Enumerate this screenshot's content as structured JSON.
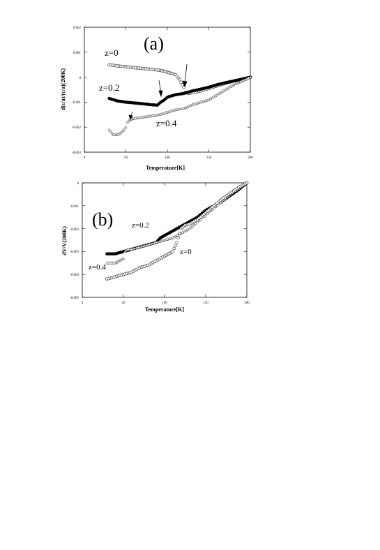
{
  "chart_data": [
    {
      "type": "scatter",
      "panel_label": "(a)",
      "xlabel": "Temperature[K]",
      "ylabel": "d(c/a)/(c/a)(200K)",
      "xlim": [
        0,
        200
      ],
      "ylim": [
        -0.003,
        0.002
      ],
      "xticks": [
        "0",
        "50",
        "100",
        "150",
        "200"
      ],
      "yticks": [
        "0.002",
        "0.001",
        "0",
        "-0.001",
        "-0.002",
        "-0.003"
      ],
      "grid": false,
      "series": [
        {
          "name": "z=0",
          "marker": "open-circle",
          "x": [
            30,
            40,
            50,
            60,
            70,
            80,
            90,
            95,
            100,
            105,
            110,
            115,
            118,
            120,
            122,
            125,
            130,
            140,
            150,
            160,
            170,
            180,
            190,
            200
          ],
          "y": [
            0.0005,
            0.00045,
            0.00042,
            0.00038,
            0.00035,
            0.00032,
            0.00028,
            0.00025,
            0.0002,
            0.00015,
            0.0001,
            -0.0001,
            -0.0003,
            -0.0004,
            -0.0006,
            -0.00065,
            -0.00062,
            -0.00055,
            -0.00045,
            -0.00035,
            -0.00025,
            -0.00015,
            -8e-05,
            0.0
          ]
        },
        {
          "name": "z=0.2",
          "marker": "filled-circle",
          "x": [
            30,
            40,
            50,
            60,
            70,
            80,
            88,
            92,
            96,
            100,
            110,
            120,
            130,
            140,
            150,
            160,
            170,
            180,
            190,
            200
          ],
          "y": [
            -0.00085,
            -0.00095,
            -0.001,
            -0.00103,
            -0.00106,
            -0.0011,
            -0.00112,
            -0.001,
            -0.00092,
            -0.0008,
            -0.0007,
            -0.00065,
            -0.00055,
            -0.00048,
            -0.0004,
            -0.0003,
            -0.00022,
            -0.00015,
            -8e-05,
            0.0
          ]
        },
        {
          "name": "z=0.4",
          "marker": "open-triangle",
          "x": [
            30,
            35,
            40,
            45,
            50,
            52,
            55,
            60,
            70,
            80,
            90,
            100,
            110,
            120,
            130,
            140,
            150,
            160,
            170,
            180,
            190,
            200
          ],
          "y": [
            -0.0021,
            -0.0023,
            -0.0023,
            -0.0022,
            -0.002,
            -0.0018,
            -0.0017,
            -0.00165,
            -0.0016,
            -0.00155,
            -0.0015,
            -0.0014,
            -0.0013,
            -0.00125,
            -0.0011,
            -0.001,
            -0.0009,
            -0.0007,
            -0.0005,
            -0.0003,
            -0.00015,
            0.0
          ]
        }
      ],
      "arrows_at_x": [
        58,
        92,
        122
      ]
    },
    {
      "type": "scatter",
      "panel_label": "(b)",
      "xlabel": "Temperature[K]",
      "ylabel": "dV/V(200K)",
      "xlim": [
        0,
        200
      ],
      "ylim": [
        -0.005,
        0
      ],
      "xticks": [
        "0",
        "50",
        "100",
        "150",
        "200"
      ],
      "yticks": [
        "0",
        "-0.001",
        "-0.002",
        "-0.003",
        "-0.004",
        "-0.005"
      ],
      "grid": false,
      "series": [
        {
          "name": "z=0.2",
          "marker": "filled-circle",
          "x": [
            30,
            40,
            50,
            60,
            70,
            80,
            90,
            95,
            100,
            110,
            120,
            130,
            140,
            150,
            160,
            170,
            180,
            190,
            200
          ],
          "y": [
            -0.0031,
            -0.0031,
            -0.003,
            -0.0029,
            -0.0028,
            -0.0027,
            -0.0026,
            -0.0024,
            -0.0023,
            -0.0021,
            -0.0019,
            -0.0017,
            -0.0015,
            -0.0012,
            -0.001,
            -0.0008,
            -0.00055,
            -0.0003,
            0.0
          ]
        },
        {
          "name": "z=0.4",
          "marker": "open-triangle",
          "x": [
            30,
            40,
            45,
            50,
            52,
            55,
            60,
            70,
            80,
            90,
            100,
            110,
            120,
            130,
            140,
            150,
            160,
            170,
            180,
            190,
            200
          ],
          "y": [
            -0.0035,
            -0.0035,
            -0.0034,
            -0.0033,
            -0.003,
            -0.0029,
            -0.0029,
            -0.0028,
            -0.0027,
            -0.0026,
            -0.0025,
            -0.0024,
            -0.0022,
            -0.002,
            -0.0017,
            -0.0014,
            -0.0011,
            -0.0008,
            -0.0005,
            -0.00025,
            0.0
          ]
        },
        {
          "name": "z=0",
          "marker": "open-circle",
          "x": [
            30,
            40,
            50,
            60,
            70,
            80,
            90,
            100,
            105,
            110,
            115,
            118,
            120,
            125,
            130,
            140,
            150,
            160,
            170,
            180,
            190,
            200
          ],
          "y": [
            -0.0042,
            -0.0041,
            -0.004,
            -0.0039,
            -0.0037,
            -0.0036,
            -0.0034,
            -0.0032,
            -0.0031,
            -0.003,
            -0.0026,
            -0.0022,
            -0.002,
            -0.00185,
            -0.0018,
            -0.0016,
            -0.0013,
            -0.001,
            -0.0007,
            -0.00045,
            -0.0002,
            0.0
          ]
        }
      ]
    }
  ]
}
